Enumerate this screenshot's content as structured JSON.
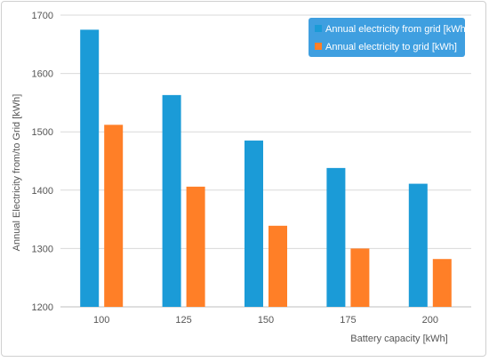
{
  "chart_data": {
    "type": "bar",
    "title": "",
    "xlabel": "Battery capacity [kWh]",
    "ylabel": "Annual Electricity from/to Grid  [kWh]",
    "categories": [
      "100",
      "125",
      "150",
      "175",
      "200"
    ],
    "ylim": [
      1200,
      1700
    ],
    "yticks": [
      1200,
      1300,
      1400,
      1500,
      1600,
      1700
    ],
    "grid": "horizontal",
    "legend_position": "top-right",
    "series": [
      {
        "name": "Annual electricity from grid [kWh]",
        "color": "#1b9bd7",
        "values": [
          1675,
          1563,
          1485,
          1438,
          1411
        ]
      },
      {
        "name": "Annual electricity to grid [kWh]",
        "color": "#ff7f27",
        "values": [
          1512,
          1406,
          1339,
          1300,
          1282
        ]
      }
    ]
  },
  "colors": {
    "legend_bg": "#3f9fe0",
    "grid": "#d9d9d9",
    "axis": "#bfbfbf"
  }
}
